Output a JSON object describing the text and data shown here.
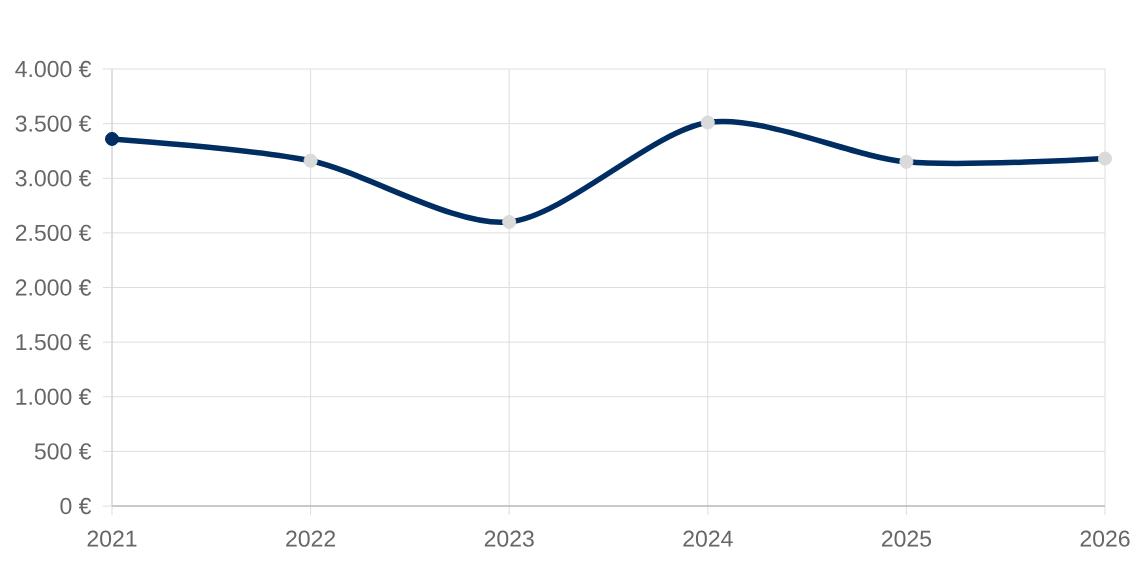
{
  "chart_data": {
    "type": "line",
    "categories": [
      "2021",
      "2022",
      "2023",
      "2024",
      "2025",
      "2026"
    ],
    "series": [
      {
        "color": "#002d62",
        "values": [
          3360,
          3160,
          2600,
          3510,
          3150,
          3180
        ],
        "colors": [
          "#002d62",
          "#dadada",
          "#dadada",
          "#dadada",
          "#dadada",
          "#dadada"
        ]
      }
    ],
    "ylim": [
      0,
      4000
    ],
    "yticks": [
      {
        "value": 0,
        "label": "0 €"
      },
      {
        "value": 500,
        "label": "500 €"
      },
      {
        "value": 1000,
        "label": "1.000 €"
      },
      {
        "value": 1500,
        "label": "1.500 €"
      },
      {
        "value": 2000,
        "label": "2.000 €"
      },
      {
        "value": 2500,
        "label": "2.500 €"
      },
      {
        "value": 3000,
        "label": "3.000 €"
      },
      {
        "value": 3500,
        "label": "3.500 €"
      },
      {
        "value": 4000,
        "label": "4.000 €"
      }
    ],
    "grid": true,
    "marker": "circle",
    "line_style": "solid"
  }
}
